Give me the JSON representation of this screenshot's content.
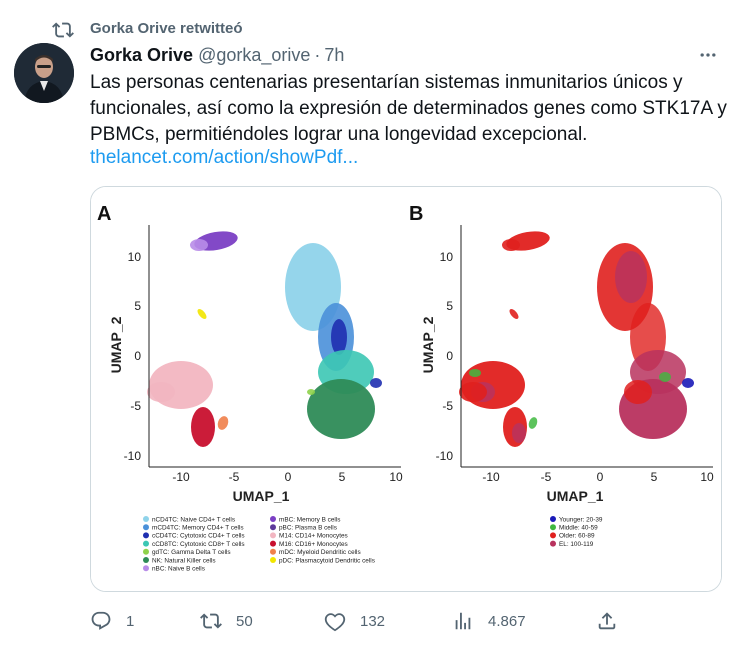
{
  "retweet_banner": {
    "text": "Gorka Orive retwitteó"
  },
  "tweet": {
    "author_name": "Gorka Orive",
    "author_handle": "@gorka_orive",
    "separator": "·",
    "time": "7h",
    "text": "Las personas centenarias presentarían sistemas inmunitarios únicos y funcionales, así como la expresión de determinados genes como STK17A y PBMCs, permitiéndoles lograr una longevidad excepcional.",
    "link": "thelancet.com/action/showPdf..."
  },
  "figure": {
    "panel_a_label": "A",
    "panel_b_label": "B",
    "xlabel": "UMAP_1",
    "ylabel": "UMAP_2",
    "x_ticks": [
      "-10",
      "-5",
      "0",
      "5",
      "10"
    ],
    "y_ticks": [
      "10",
      "5",
      "0",
      "-5",
      "-10"
    ],
    "legend_a_col1": [
      {
        "label": "nCD4TC: Naive CD4+ T cells",
        "color": "#8fd3ea"
      },
      {
        "label": "mCD4TC: Memory CD4+ T cells",
        "color": "#4a90d9"
      },
      {
        "label": "cCD4TC: Cytotoxic CD4+ T cells",
        "color": "#1f2fb0"
      },
      {
        "label": "cCD8TC: Cytotoxic CD8+ T cells",
        "color": "#3cc7b4"
      },
      {
        "label": "gdTC: Gamma Delta T cells",
        "color": "#8ed24a"
      },
      {
        "label": "NK: Natural Killer cells",
        "color": "#2e8b57"
      },
      {
        "label": "nBC: Naive B cells",
        "color": "#b88ce8"
      }
    ],
    "legend_a_col2": [
      {
        "label": "mBC: Memory B cells",
        "color": "#7b3fc4"
      },
      {
        "label": "pBC: Plasma B cells",
        "color": "#5d3a9b"
      },
      {
        "label": "M14: CD14+ Monocytes",
        "color": "#f2b6c1"
      },
      {
        "label": "M16: CD16+ Monocytes",
        "color": "#c8102e"
      },
      {
        "label": "mDC: Myeloid Dendritic cells",
        "color": "#f0804a"
      },
      {
        "label": "pDC: Plasmacytoid Dendritic cells",
        "color": "#f2e600"
      }
    ],
    "legend_b": [
      {
        "label": "Younger: 20-39",
        "color": "#1a1ab8"
      },
      {
        "label": "Middle: 40-59",
        "color": "#3fb83f"
      },
      {
        "label": "Older: 60-89",
        "color": "#e0201e"
      },
      {
        "label": "EL: 100-119",
        "color": "#b8325e"
      }
    ]
  },
  "actions": {
    "reply_count": "1",
    "retweet_count": "50",
    "like_count": "132",
    "views_count": "4.867"
  }
}
